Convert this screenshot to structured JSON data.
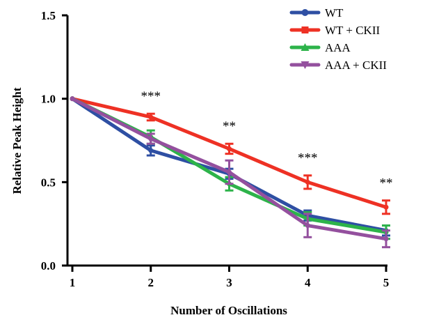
{
  "chart_data": {
    "type": "line",
    "xlabel": "Number of Oscillations",
    "ylabel": "Relative Peak Height",
    "x": [
      1,
      2,
      3,
      4,
      5
    ],
    "x_ticks": [
      "1",
      "2",
      "3",
      "4",
      "5"
    ],
    "ylim": [
      0,
      1.5
    ],
    "y_ticks": [
      "0.0",
      "0.5",
      "1.0",
      "1.5"
    ],
    "grid": false,
    "legend_position": "top-right",
    "series": [
      {
        "name": "WT",
        "color": "#2E4FA3",
        "marker": "circle",
        "values": [
          1.0,
          0.69,
          0.55,
          0.3,
          0.21
        ],
        "errors": [
          0,
          0.03,
          0.03,
          0.03,
          0.03
        ]
      },
      {
        "name": "WT + CKII",
        "color": "#EE3124",
        "marker": "square",
        "values": [
          1.0,
          0.89,
          0.7,
          0.5,
          0.35
        ],
        "errors": [
          0,
          0.02,
          0.03,
          0.04,
          0.04
        ]
      },
      {
        "name": "AAA",
        "color": "#2DB34A",
        "marker": "triangle-up",
        "values": [
          1.0,
          0.77,
          0.49,
          0.28,
          0.2
        ],
        "errors": [
          0,
          0.04,
          0.04,
          0.04,
          0.04
        ]
      },
      {
        "name": "AAA + CKII",
        "color": "#94509E",
        "marker": "triangle-down",
        "values": [
          1.0,
          0.76,
          0.56,
          0.24,
          0.16
        ],
        "errors": [
          0,
          0.03,
          0.07,
          0.07,
          0.05
        ]
      }
    ],
    "annotations": [
      {
        "x": 2,
        "y": 0.99,
        "text": "***"
      },
      {
        "x": 3,
        "y": 0.81,
        "text": "**"
      },
      {
        "x": 4,
        "y": 0.62,
        "text": "***"
      },
      {
        "x": 5,
        "y": 0.47,
        "text": "**"
      }
    ]
  }
}
